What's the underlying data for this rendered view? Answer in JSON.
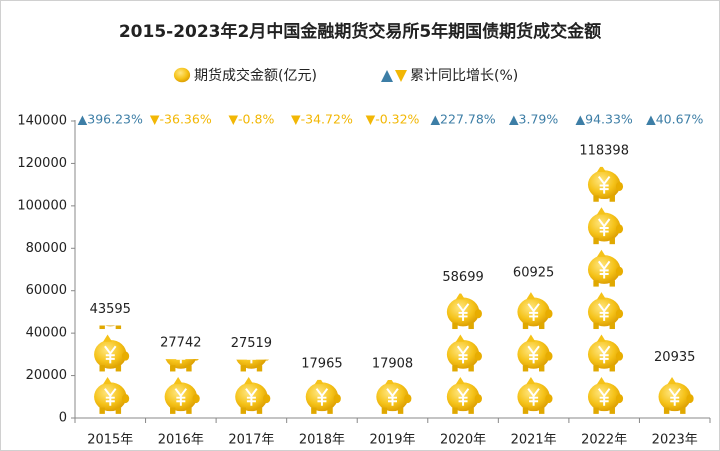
{
  "chart_data": {
    "type": "pictogram-bar",
    "title": "2015-2023年2月中国金融期货交易所5年期国债期货成交金额",
    "categories": [
      "2015年",
      "2016年",
      "2017年",
      "2018年",
      "2019年",
      "2020年",
      "2021年",
      "2022年",
      "2023年"
    ],
    "series": [
      {
        "name": "期货成交金额(亿元)",
        "color": "#f2b705",
        "values": [
          43595,
          27742,
          27519,
          17965,
          17908,
          58699,
          60925,
          118398,
          20935
        ]
      },
      {
        "name": "累计同比增长(%)",
        "color": "#3d7ea6",
        "negative_color": "#f2b705",
        "values": [
          396.23,
          -36.36,
          -0.8,
          -34.72,
          -0.32,
          227.78,
          3.79,
          94.33,
          40.67
        ],
        "value_labels": [
          "▲396.23%",
          "▼-36.36%",
          "▼-0.8%",
          "▼-34.72%",
          "▼-0.32%",
          "▲227.78%",
          "▲3.79%",
          "▲94.33%",
          "▲40.67%"
        ]
      }
    ],
    "icon_unit": 20000,
    "ylim": [
      0,
      140000
    ],
    "yticks": [
      0,
      20000,
      40000,
      60000,
      80000,
      100000,
      120000,
      140000
    ]
  }
}
